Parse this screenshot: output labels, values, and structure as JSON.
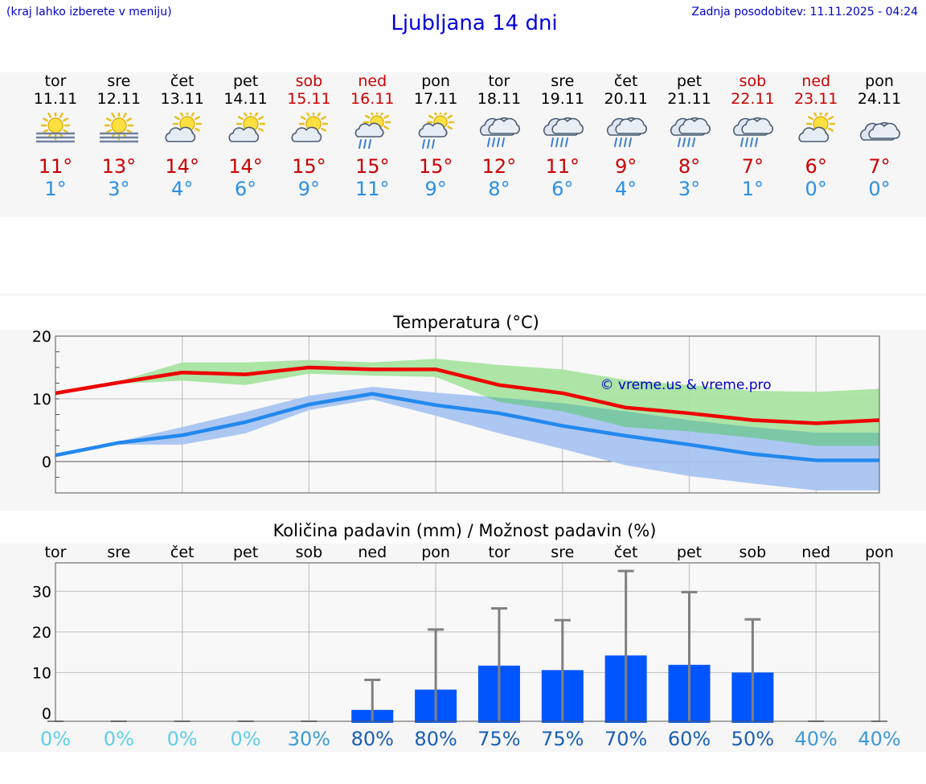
{
  "header": {
    "hint": "(kraj lahko izberete v meniju)",
    "title": "Ljubljana 14 dni",
    "updated": "Zadnja posodobitev: 11.11.2025 - 04:24"
  },
  "colors": {
    "max_line": "#ee0000",
    "min_line": "#2288ee",
    "max_band": "#a8e4a0",
    "min_band": "#a8c4f0",
    "overlap_band": "#7cc8a6",
    "bar": "#0055ff",
    "error_bar": "#808080",
    "weekend": "#cc0000",
    "watermark": "#0000cc"
  },
  "days": [
    {
      "name": "tor",
      "date": "11.11",
      "icon": "sun-fog-icon",
      "max": "11°",
      "min": "1°",
      "weekend": false
    },
    {
      "name": "sre",
      "date": "12.11",
      "icon": "sun-fog-icon",
      "max": "13°",
      "min": "3°",
      "weekend": false
    },
    {
      "name": "čet",
      "date": "13.11",
      "icon": "sun-cloud-icon",
      "max": "14°",
      "min": "4°",
      "weekend": false
    },
    {
      "name": "pet",
      "date": "14.11",
      "icon": "sun-cloud-icon",
      "max": "14°",
      "min": "6°",
      "weekend": false
    },
    {
      "name": "sob",
      "date": "15.11",
      "icon": "sun-cloud-icon",
      "max": "15°",
      "min": "9°",
      "weekend": true
    },
    {
      "name": "ned",
      "date": "16.11",
      "icon": "sun-cloud-rain-icon",
      "max": "15°",
      "min": "11°",
      "weekend": true
    },
    {
      "name": "pon",
      "date": "17.11",
      "icon": "sun-cloud-rain-icon",
      "max": "15°",
      "min": "9°",
      "weekend": false
    },
    {
      "name": "tor",
      "date": "18.11",
      "icon": "cloud-rain-icon",
      "max": "12°",
      "min": "8°",
      "weekend": false
    },
    {
      "name": "sre",
      "date": "19.11",
      "icon": "cloud-rain-icon",
      "max": "11°",
      "min": "6°",
      "weekend": false
    },
    {
      "name": "čet",
      "date": "20.11",
      "icon": "cloud-rain-icon",
      "max": "9°",
      "min": "4°",
      "weekend": false
    },
    {
      "name": "pet",
      "date": "21.11",
      "icon": "cloud-rain-icon",
      "max": "8°",
      "min": "3°",
      "weekend": false
    },
    {
      "name": "sob",
      "date": "22.11",
      "icon": "cloud-rain-icon",
      "max": "7°",
      "min": "1°",
      "weekend": true
    },
    {
      "name": "ned",
      "date": "23.11",
      "icon": "sun-cloud-icon",
      "max": "6°",
      "min": "0°",
      "weekend": true
    },
    {
      "name": "pon",
      "date": "24.11",
      "icon": "cloud-icon",
      "max": "7°",
      "min": "0°",
      "weekend": false
    }
  ],
  "chart_data": [
    {
      "type": "line",
      "title": "Temperatura (°C)",
      "watermark": "© vreme.us & vreme.pro",
      "x": [
        0,
        1,
        2,
        3,
        4,
        5,
        6,
        7,
        8,
        9,
        10,
        11,
        12,
        13
      ],
      "ylim": [
        -5,
        20
      ],
      "yticks": [
        0,
        10,
        20
      ],
      "grid": true,
      "series": [
        {
          "values": [
            10.9,
            12.6,
            14.2,
            13.9,
            15.0,
            14.7,
            14.7,
            12.2,
            10.9,
            8.6,
            7.7,
            6.6,
            6.1,
            6.6
          ]
        },
        {
          "values": [
            1.0,
            3.0,
            4.2,
            6.3,
            9.1,
            10.8,
            9.0,
            7.7,
            5.7,
            4.1,
            2.7,
            1.2,
            0.2,
            0.2
          ]
        }
      ],
      "bands": [
        {
          "low": [
            10.9,
            12.4,
            12.9,
            12.2,
            14.0,
            13.7,
            13.5,
            9.5,
            8.0,
            5.5,
            4.8,
            3.8,
            2.5,
            2.5
          ],
          "high": [
            10.9,
            12.8,
            15.8,
            15.8,
            16.2,
            15.8,
            16.4,
            15.4,
            14.7,
            13.0,
            12.2,
            11.3,
            11.1,
            11.6
          ]
        },
        {
          "low": [
            1.0,
            2.7,
            2.7,
            4.5,
            8.2,
            9.9,
            7.3,
            4.5,
            2.0,
            -0.6,
            -2.3,
            -3.5,
            -4.6,
            -4.6
          ],
          "high": [
            1.0,
            3.2,
            5.5,
            7.9,
            10.5,
            11.9,
            11.0,
            10.2,
            9.3,
            8.0,
            6.6,
            5.5,
            4.6,
            4.6
          ]
        }
      ]
    },
    {
      "type": "bar",
      "title": "Količina padavin (mm) / Možnost padavin (%)",
      "categories": [
        "tor",
        "sre",
        "čet",
        "pet",
        "sob",
        "ned",
        "pon",
        "tor",
        "sre",
        "čet",
        "pet",
        "sob",
        "ned",
        "pon"
      ],
      "values": [
        0,
        0,
        0,
        0,
        0,
        0.8,
        5.8,
        11.7,
        10.6,
        14.2,
        11.9,
        10.0,
        0,
        0
      ],
      "error_high": [
        0,
        0,
        0,
        0,
        0,
        8.2,
        20.6,
        25.8,
        22.9,
        35.0,
        29.8,
        23.1,
        0,
        0
      ],
      "ylim": [
        -2,
        37
      ],
      "yticks": [
        0,
        10,
        20,
        30
      ],
      "probability": [
        "0%",
        "0%",
        "0%",
        "0%",
        "30%",
        "80%",
        "80%",
        "75%",
        "75%",
        "70%",
        "60%",
        "50%",
        "40%",
        "40%"
      ],
      "probability_colors": [
        "#5fcfe8",
        "#5fcfe8",
        "#5fcfe8",
        "#5fcfe8",
        "#3d9ad6",
        "#1a5fb4",
        "#1a5fb4",
        "#1a5fb4",
        "#1a5fb4",
        "#1a5fb4",
        "#1a5fb4",
        "#1a5fb4",
        "#3d9ad6",
        "#3d9ad6"
      ]
    }
  ]
}
